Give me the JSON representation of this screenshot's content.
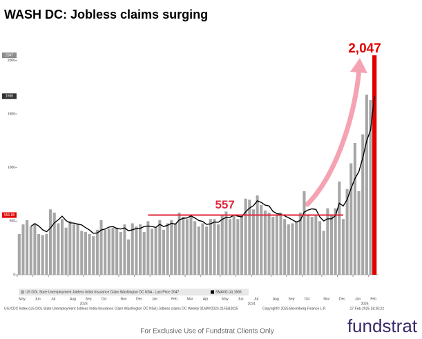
{
  "chart_data": {
    "type": "bar",
    "title": "WASH DC: Jobless claims surging",
    "categories": [
      "May",
      null,
      null,
      null,
      "Jun",
      null,
      null,
      null,
      "Jul",
      null,
      null,
      null,
      null,
      "Aug",
      null,
      null,
      null,
      "Sep",
      null,
      null,
      null,
      "Oct",
      null,
      null,
      null,
      null,
      "Nov",
      null,
      null,
      null,
      "Dec",
      null,
      null,
      null,
      "Jan",
      null,
      null,
      null,
      null,
      "Feb",
      null,
      null,
      null,
      "Mar",
      null,
      null,
      null,
      "Apr",
      null,
      null,
      null,
      null,
      "May",
      null,
      null,
      null,
      "Jun",
      null,
      null,
      null,
      "Jul",
      null,
      null,
      null,
      null,
      "Aug",
      null,
      null,
      null,
      "Sep",
      null,
      null,
      null,
      "Oct",
      null,
      null,
      null,
      null,
      "Nov",
      null,
      null,
      null,
      "Dec",
      null,
      null,
      null,
      "Jan",
      null,
      null,
      null,
      "Feb",
      null
    ],
    "years": [
      "2023",
      "2024",
      "2025"
    ],
    "series": [
      {
        "name": "US DOL State Unemployment Jobless Initial Insurance Claim Washington DC NSA - Last Price 2047",
        "color": "#a6a6a6",
        "highlight_color": "#e00000",
        "values": [
          380,
          470,
          510,
          450,
          480,
          380,
          370,
          380,
          610,
          580,
          480,
          520,
          440,
          500,
          470,
          480,
          410,
          400,
          380,
          360,
          420,
          510,
          420,
          430,
          440,
          440,
          400,
          470,
          330,
          480,
          450,
          470,
          400,
          500,
          430,
          440,
          510,
          420,
          480,
          510,
          480,
          580,
          540,
          520,
          560,
          500,
          450,
          480,
          450,
          520,
          520,
          470,
          560,
          590,
          520,
          560,
          520,
          560,
          710,
          700,
          610,
          740,
          650,
          600,
          580,
          540,
          560,
          580,
          520,
          470,
          480,
          500,
          580,
          780,
          560,
          540,
          560,
          500,
          410,
          620,
          560,
          620,
          870,
          520,
          800,
          1040,
          1230,
          780,
          1310,
          1680,
          1630,
          2047
        ]
      },
      {
        "name": "SMAVG (4) 1666",
        "type": "line",
        "color": "#000000",
        "values": [
          null,
          null,
          null,
          452,
          477,
          455,
          420,
          402,
          435,
          485,
          512,
          547,
          505,
          485,
          482,
          472,
          465,
          440,
          417,
          387,
          390,
          417,
          427,
          445,
          450,
          432,
          427,
          437,
          410,
          420,
          432,
          432,
          450,
          455,
          450,
          442,
          470,
          450,
          462,
          480,
          472,
          512,
          527,
          530,
          550,
          530,
          507,
          497,
          470,
          475,
          492,
          490,
          517,
          535,
          535,
          557,
          547,
          540,
          587,
          622,
          645,
          690,
          675,
          650,
          642,
          592,
          570,
          565,
          550,
          532,
          512,
          492,
          507,
          585,
          605,
          615,
          610,
          540,
          502,
          522,
          522,
          552,
          667,
          642,
          702,
          807,
          897,
          962,
          1090,
          1250,
          1350,
          1666
        ]
      }
    ],
    "axis_badges": [
      {
        "value": 2047,
        "color": "#8c8c8c"
      },
      {
        "value": 1666,
        "color": "#333333"
      },
      {
        "value": 556.88,
        "color": "#e00000"
      }
    ],
    "reference_line": {
      "value": 557,
      "color": "#e0263a",
      "from_index": 33,
      "to_index": 83
    },
    "annotations": [
      {
        "text": "2,047",
        "color": "#e00000"
      }
    ],
    "ylim": [
      0,
      2080
    ],
    "yticks": [
      0,
      500,
      1000,
      1500,
      2000
    ],
    "grid": false,
    "source": "USJCDC Index (US DOL State Unemployment Jobless Initial Insurance Claim Washington DC NSA) Jobless claims DC  Weekly 01MAY2023-21FEB2025",
    "copyright": "Copyright© 2025 Bloomberg Finance L.P.",
    "timestamp": "27-Feb-2025 18:26:22",
    "disclaimer": "For Exclusive Use of Fundstrat Clients Only",
    "logo": "fundstrat"
  }
}
